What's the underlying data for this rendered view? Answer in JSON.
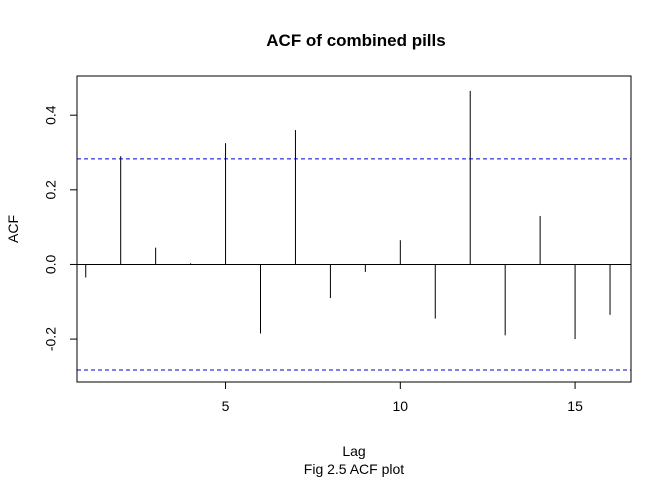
{
  "chart_data": {
    "type": "bar",
    "title": "ACF of combined pills",
    "xlabel": "Lag",
    "ylabel": "ACF",
    "caption": "Fig 2.5 ACF plot",
    "xlim": [
      0.75,
      16.6
    ],
    "ylim": [
      -0.315,
      0.505
    ],
    "x_ticks": [
      5,
      10,
      15
    ],
    "x_tick_labels": [
      "5",
      "10",
      "15"
    ],
    "y_ticks": [
      -0.2,
      0.0,
      0.2,
      0.4
    ],
    "y_tick_labels": [
      "-0.2",
      "0.0",
      "0.2",
      "0.4"
    ],
    "lags": [
      1,
      2,
      3,
      4,
      5,
      6,
      7,
      8,
      9,
      10,
      11,
      12,
      13,
      14,
      15,
      16
    ],
    "acf": [
      -0.035,
      0.29,
      0.045,
      0.003,
      0.325,
      -0.185,
      0.36,
      -0.09,
      -0.02,
      0.065,
      -0.145,
      0.465,
      -0.19,
      0.13,
      -0.2,
      -0.135
    ],
    "confidence_bounds": [
      0.283,
      -0.283
    ],
    "colors": {
      "bars": "#000000",
      "bounds": "#0000CD",
      "axis": "#000000"
    }
  }
}
